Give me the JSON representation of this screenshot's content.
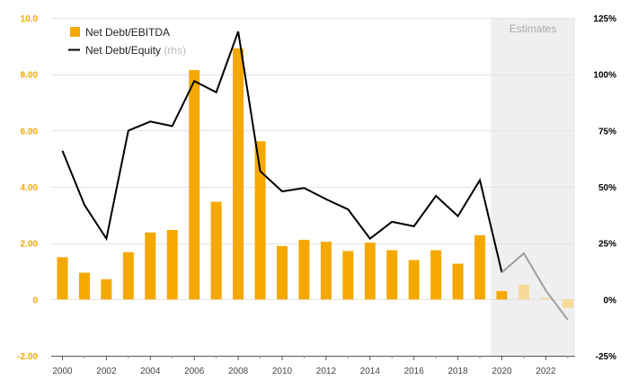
{
  "chart_data": {
    "type": "bar",
    "x": [
      2000,
      2001,
      2002,
      2003,
      2004,
      2005,
      2006,
      2007,
      2008,
      2009,
      2010,
      2011,
      2012,
      2013,
      2014,
      2015,
      2016,
      2017,
      2018,
      2019,
      2020,
      2021,
      2022,
      2023
    ],
    "estimate_start": 2020,
    "estimates_label": "Estimates",
    "series": [
      {
        "name": "Net Debt/EBITDA",
        "axis": "left",
        "type": "bar",
        "color": "#f5a800",
        "estimate_color": "#f7d99a",
        "values": [
          1.5,
          0.95,
          0.72,
          1.68,
          2.38,
          2.47,
          8.15,
          3.47,
          8.92,
          5.62,
          1.9,
          2.12,
          2.05,
          1.72,
          2.02,
          1.75,
          1.4,
          1.75,
          1.27,
          2.28,
          0.3,
          0.52,
          0.06,
          -0.3
        ]
      },
      {
        "name": "Net Debt/Equity",
        "name_suffix": "(rhs)",
        "axis": "right",
        "type": "line",
        "color": "#000000",
        "estimate_color": "#9e9e9e",
        "values": [
          66,
          42,
          27,
          75,
          79,
          77,
          97,
          92,
          119,
          57,
          48,
          49.5,
          44.5,
          40,
          27,
          34.5,
          32.5,
          46,
          37,
          53,
          12,
          20.5,
          4,
          -9
        ]
      }
    ],
    "y_left": {
      "lim": [
        -2,
        10
      ],
      "ticks": [
        -2,
        0,
        2,
        4,
        6,
        8,
        10
      ],
      "tick_labels": [
        "-2.00",
        "0",
        "2.00",
        "4.00",
        "6.00",
        "8.00",
        "10.0"
      ],
      "color": "#f5a800"
    },
    "y_right": {
      "lim": [
        -25,
        125
      ],
      "ticks": [
        -25,
        0,
        25,
        50,
        75,
        100,
        125
      ],
      "tick_labels": [
        "-25%",
        "0%",
        "25%",
        "50%",
        "75%",
        "100%",
        "125%"
      ]
    },
    "x_ticks": [
      2000,
      2002,
      2004,
      2006,
      2008,
      2010,
      2012,
      2014,
      2016,
      2018,
      2020,
      2022
    ],
    "x_tick_labels": [
      "2000",
      "2002",
      "2004",
      "2006",
      "2008",
      "2010",
      "2012",
      "2014",
      "2016",
      "2018",
      "2020",
      "2022"
    ],
    "grid": "horizontal",
    "legend_position": "top-left"
  }
}
